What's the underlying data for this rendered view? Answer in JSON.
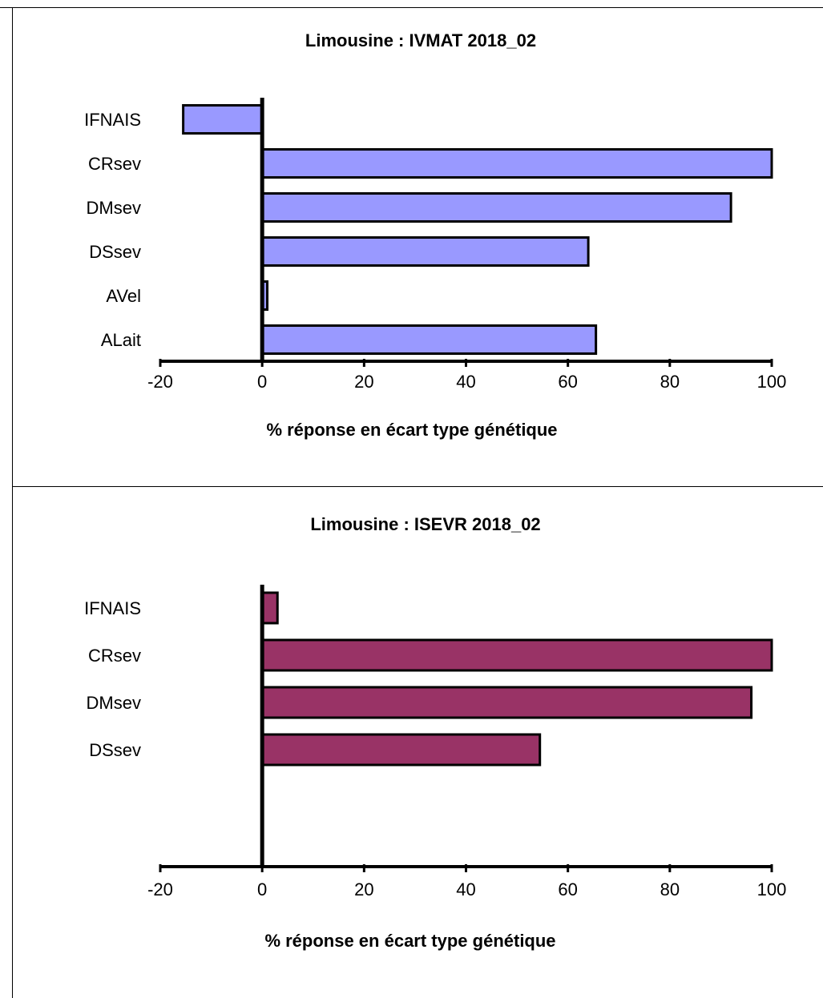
{
  "chart_data": [
    {
      "type": "bar",
      "orientation": "horizontal",
      "title": "Limousine : IVMAT 2018_02",
      "xlabel": "% réponse en écart type génétique",
      "ylabel": "",
      "categories": [
        "IFNAIS",
        "CRsev",
        "DMsev",
        "DSsev",
        "AVel",
        "ALait"
      ],
      "values": [
        -15.5,
        100,
        92,
        64,
        1,
        65.5
      ],
      "xlim": [
        -20,
        100
      ],
      "xticks": [
        "-20",
        "0",
        "20",
        "40",
        "60",
        "80",
        "100"
      ],
      "bar_color": "#9999ff",
      "grid": false,
      "legend": "none"
    },
    {
      "type": "bar",
      "orientation": "horizontal",
      "title": "Limousine : ISEVR 2018_02",
      "xlabel": "% réponse en écart type génétique",
      "ylabel": "",
      "categories": [
        "IFNAIS",
        "CRsev",
        "DMsev",
        "DSsev"
      ],
      "values": [
        3,
        100,
        96,
        54.5
      ],
      "xlim": [
        -20,
        100
      ],
      "xticks": [
        "-20",
        "0",
        "20",
        "40",
        "60",
        "80",
        "100"
      ],
      "bar_color": "#993366",
      "grid": false,
      "legend": "none"
    }
  ]
}
